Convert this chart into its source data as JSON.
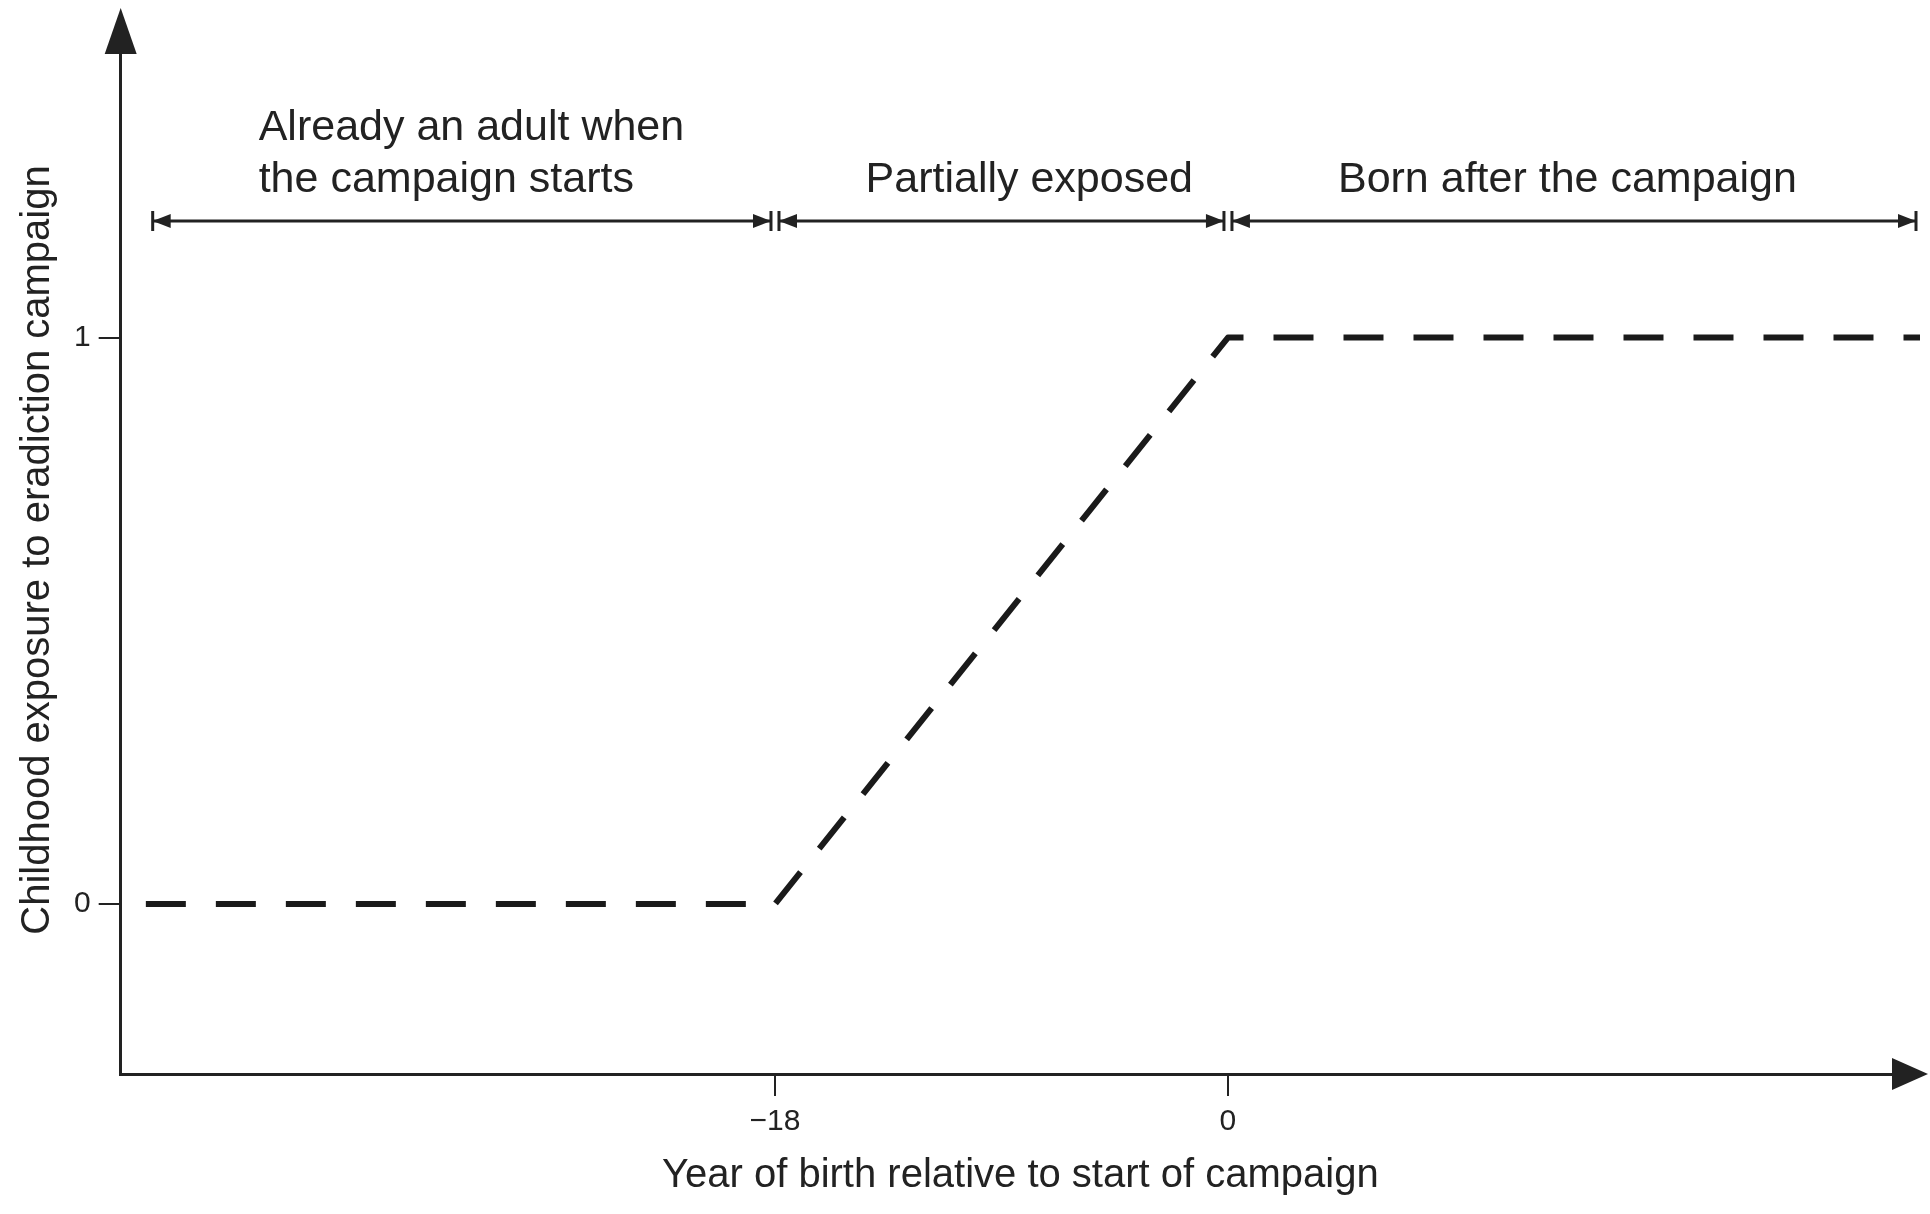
{
  "chart_data": {
    "type": "line",
    "xlabel": "Year of birth relative to start of campaign",
    "ylabel": "Childhood exposure to eradiction campaign",
    "xlim": [
      -44,
      27.5
    ],
    "xticks": [
      {
        "value": -18,
        "label": "−18"
      },
      0
    ],
    "ylim": [
      -0.3,
      1.55
    ],
    "yticks": [
      0,
      1
    ],
    "series": [
      {
        "color": "#1a1a1a",
        "x": [
          -43,
          -18,
          0,
          27.5
        ],
        "values": [
          0,
          0,
          1,
          1
        ]
      }
    ],
    "line_style": "dashed",
    "marker": "none",
    "legend": false,
    "annotations": [
      "Already an adult when the campaign starts",
      "Partially exposed",
      "Born after the campaign"
    ]
  }
}
